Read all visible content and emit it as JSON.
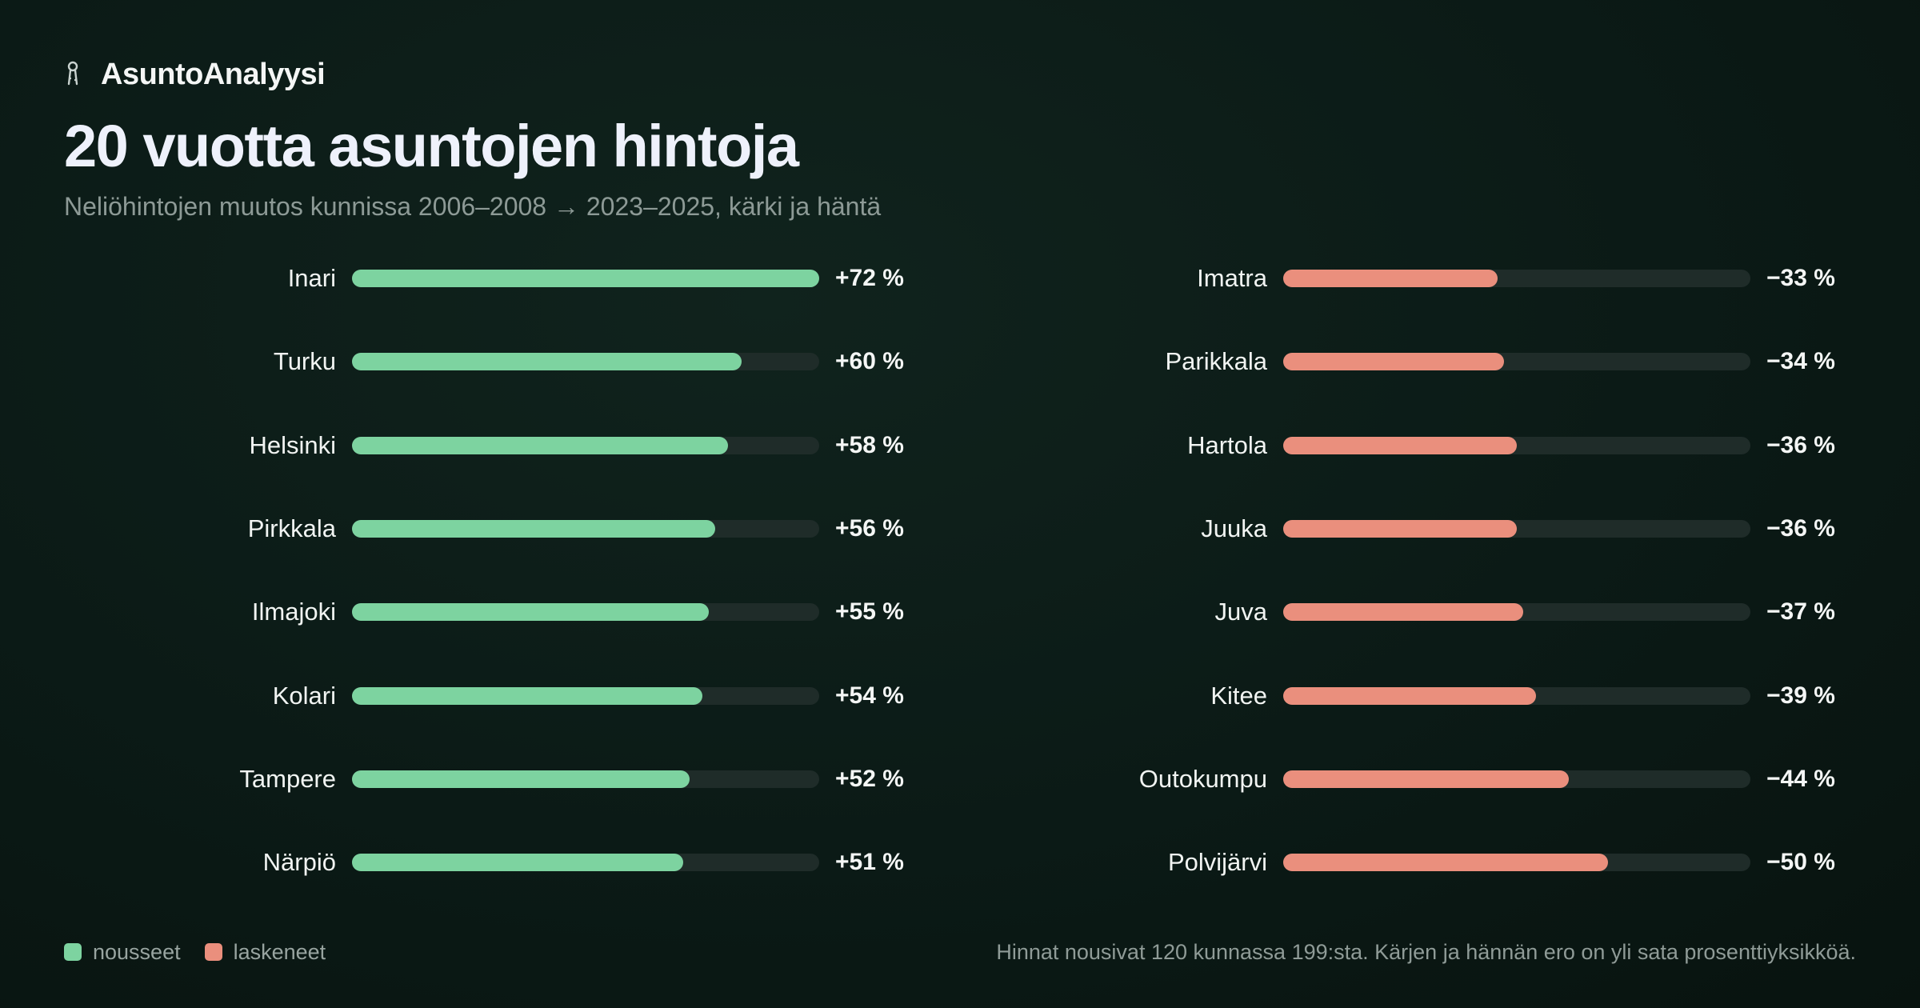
{
  "brand": {
    "name": "AsuntoAnalyysi",
    "icon": "keys-icon"
  },
  "title": "20 vuotta asuntojen hintoja",
  "subtitle": "Neliöhintojen muutos kunnissa 2006–2008 → 2023–2025, kärki ja häntä",
  "colors": {
    "rise": "#7dd3a0",
    "fall": "#ea8f7d",
    "track": "#1f2c29"
  },
  "chart_data": [
    {
      "type": "bar",
      "orientation": "horizontal",
      "categories": [
        "Inari",
        "Turku",
        "Helsinki",
        "Pirkkala",
        "Ilmajoki",
        "Kolari",
        "Tampere",
        "Närpiö"
      ],
      "values": [
        72,
        60,
        58,
        56,
        55,
        54,
        52,
        51
      ],
      "value_labels": [
        "+72 %",
        "+60 %",
        "+58 %",
        "+56 %",
        "+55 %",
        "+54 %",
        "+52 %",
        "+51 %"
      ],
      "xlim": [
        0,
        72
      ],
      "unit": "%",
      "color": "#7dd3a0"
    },
    {
      "type": "bar",
      "orientation": "horizontal",
      "categories": [
        "Imatra",
        "Parikkala",
        "Hartola",
        "Juuka",
        "Juva",
        "Kitee",
        "Outokumpu",
        "Polvijärvi"
      ],
      "values": [
        -33,
        -34,
        -36,
        -36,
        -37,
        -39,
        -44,
        -50
      ],
      "value_labels": [
        "−33 %",
        "−34 %",
        "−36 %",
        "−36 %",
        "−37 %",
        "−39 %",
        "−44 %",
        "−50 %"
      ],
      "xlim": [
        0,
        72
      ],
      "unit": "%",
      "color": "#ea8f7d"
    }
  ],
  "legend": {
    "rise": "nousseet",
    "fall": "laskeneet"
  },
  "footnote": "Hinnat nousivat 120 kunnassa 199:sta. Kärjen ja hännän ero on yli sata prosenttiyksikköä."
}
